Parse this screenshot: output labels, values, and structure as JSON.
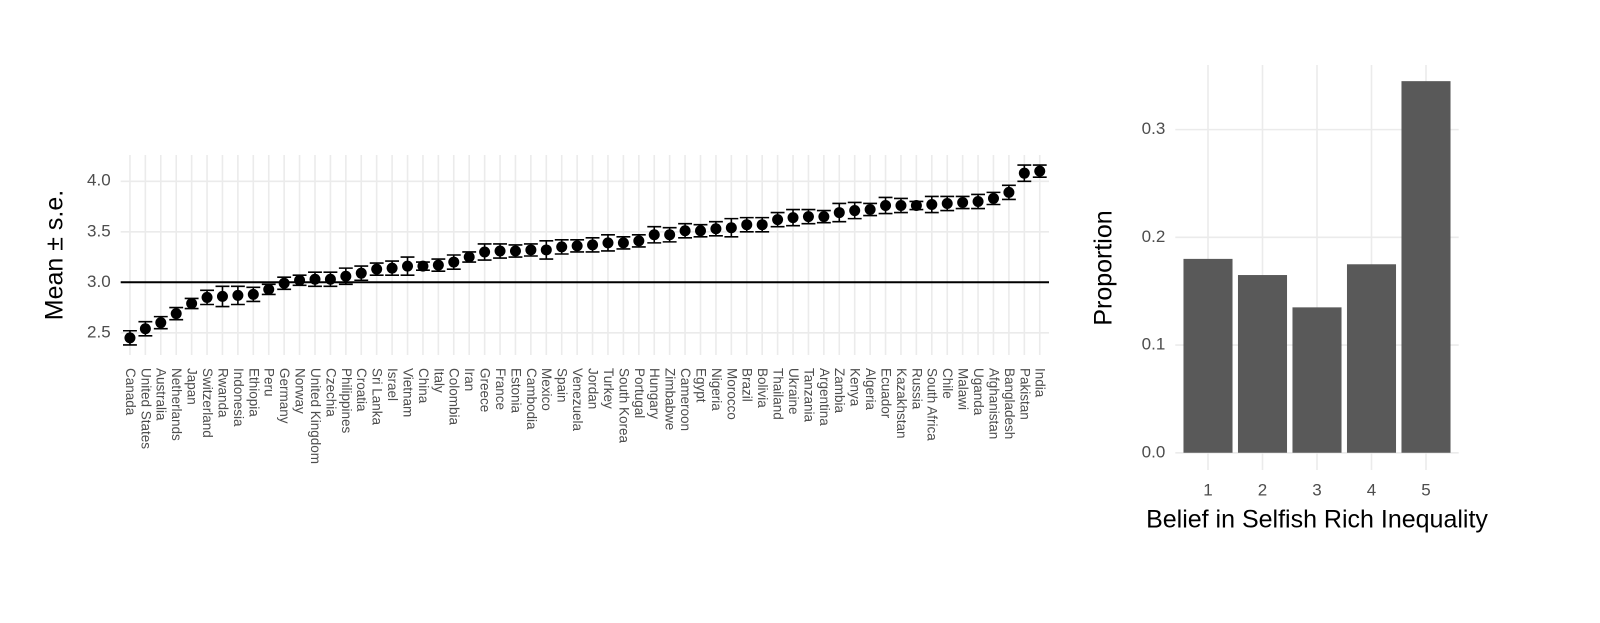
{
  "chart_data": [
    {
      "type": "pointrange",
      "y_label": "Mean ± s.e.",
      "categories": [
        "Canada",
        "United States",
        "Australia",
        "Netherlands",
        "Japan",
        "Switzerland",
        "Rwanda",
        "Indonesia",
        "Ethiopia",
        "Peru",
        "Germany",
        "Norway",
        "United Kingdom",
        "Czechia",
        "Philippines",
        "Croatia",
        "Sri Lanka",
        "Israel",
        "Vietnam",
        "China",
        "Italy",
        "Colombia",
        "Iran",
        "Greece",
        "France",
        "Estonia",
        "Cambodia",
        "Mexico",
        "Spain",
        "Venezuela",
        "Jordan",
        "Turkey",
        "South Korea",
        "Portugal",
        "Hungary",
        "Zimbabwe",
        "Cameroon",
        "Egypt",
        "Nigeria",
        "Morocco",
        "Brazil",
        "Bolivia",
        "Thailand",
        "Ukraine",
        "Tanzania",
        "Argentina",
        "Zambia",
        "Kenya",
        "Algeria",
        "Ecuador",
        "Kazakhstan",
        "Russia",
        "South Africa",
        "Chile",
        "Malawi",
        "Uganda",
        "Afghanistan",
        "Bangladesh",
        "Pakistan",
        "India"
      ],
      "values": [
        2.45,
        2.54,
        2.6,
        2.69,
        2.79,
        2.85,
        2.86,
        2.87,
        2.88,
        2.93,
        2.99,
        3.02,
        3.03,
        3.03,
        3.06,
        3.09,
        3.13,
        3.14,
        3.16,
        3.16,
        3.17,
        3.2,
        3.25,
        3.3,
        3.31,
        3.31,
        3.32,
        3.32,
        3.35,
        3.36,
        3.37,
        3.39,
        3.39,
        3.41,
        3.47,
        3.47,
        3.51,
        3.51,
        3.53,
        3.54,
        3.57,
        3.57,
        3.62,
        3.64,
        3.65,
        3.65,
        3.69,
        3.71,
        3.72,
        3.76,
        3.76,
        3.76,
        3.77,
        3.78,
        3.79,
        3.8,
        3.83,
        3.89,
        4.08,
        4.1
      ],
      "errors": [
        0.07,
        0.07,
        0.06,
        0.06,
        0.05,
        0.07,
        0.1,
        0.09,
        0.07,
        0.05,
        0.06,
        0.05,
        0.07,
        0.07,
        0.08,
        0.07,
        0.06,
        0.07,
        0.09,
        0.04,
        0.06,
        0.07,
        0.05,
        0.08,
        0.07,
        0.06,
        0.06,
        0.09,
        0.07,
        0.06,
        0.07,
        0.08,
        0.06,
        0.06,
        0.08,
        0.07,
        0.07,
        0.06,
        0.07,
        0.09,
        0.07,
        0.07,
        0.07,
        0.08,
        0.07,
        0.06,
        0.09,
        0.08,
        0.06,
        0.08,
        0.07,
        0.04,
        0.08,
        0.07,
        0.06,
        0.07,
        0.06,
        0.07,
        0.08,
        0.06
      ],
      "color": "#000000",
      "hline": 3,
      "ylim": [
        2.28,
        4.26
      ],
      "yticks": [
        {
          "value": 2.5,
          "label": "2.5"
        },
        {
          "value": 3,
          "label": "3.0"
        },
        {
          "value": 3.5,
          "label": "3.5"
        },
        {
          "value": 4,
          "label": "4.0"
        }
      ],
      "grid": true
    },
    {
      "type": "bar",
      "x_label": "Belief in Selfish Rich Inequality",
      "y_label": "Proportion",
      "categories": [
        "1",
        "2",
        "3",
        "4",
        "5"
      ],
      "values": [
        0.18,
        0.165,
        0.135,
        0.175,
        0.345
      ],
      "color": "#595959",
      "ylim": [
        -0.016,
        0.36
      ],
      "yticks": [
        {
          "value": 0,
          "label": "0.0"
        },
        0.1,
        0.2,
        0.3
      ],
      "grid": true
    }
  ]
}
